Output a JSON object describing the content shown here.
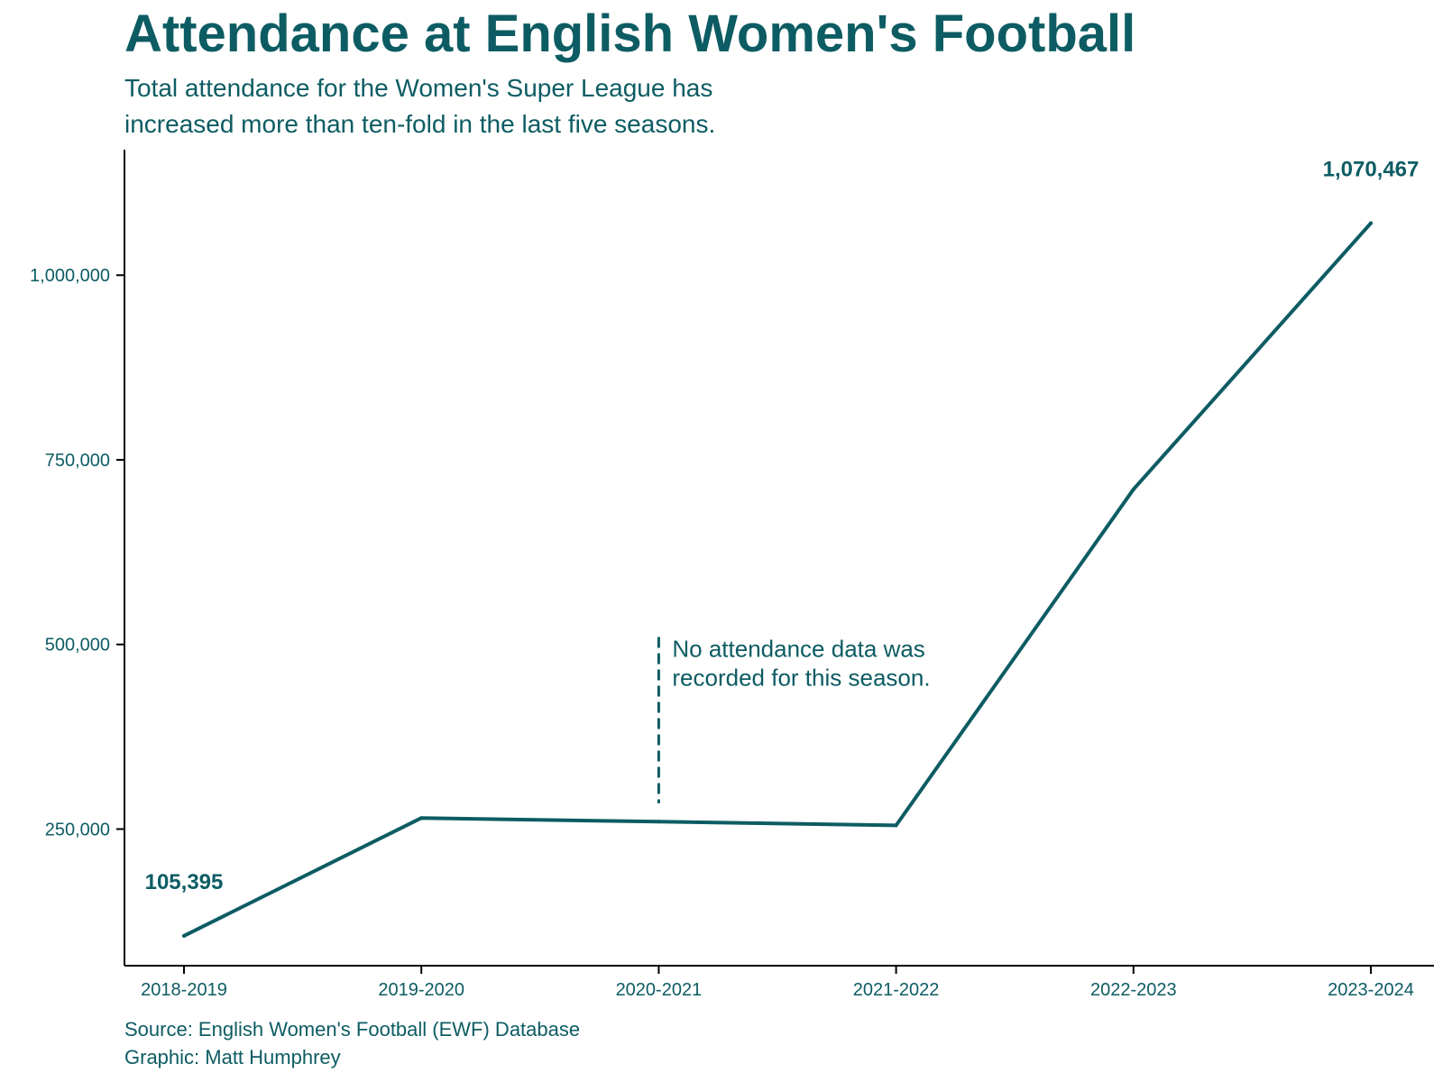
{
  "header": {
    "title": "Attendance at English Women's Football",
    "subtitle": "Total attendance for the Women's Super League has increased more than ten-fold in the last five seasons."
  },
  "footer": {
    "source": "Source: English Women's Football (EWF) Database",
    "credit": "Graphic: Matt Humphrey"
  },
  "chart_data": {
    "type": "line",
    "title": "Attendance at English Women's Football",
    "subtitle": "Total attendance for the Women's Super League has increased more than ten-fold in the last five seasons.",
    "xlabel": "",
    "ylabel": "",
    "categories": [
      "2018-2019",
      "2019-2020",
      "2020-2021",
      "2021-2022",
      "2022-2023",
      "2023-2024"
    ],
    "series": [
      {
        "values": [
          105395,
          265000,
          260000,
          255000,
          710000,
          1070467
        ]
      }
    ],
    "ylim": [
      65000,
      1170000
    ],
    "yticks": [
      250000,
      500000,
      750000,
      1000000
    ],
    "ytick_labels": [
      "250,000",
      "500,000",
      "750,000",
      "1,000,000"
    ],
    "grid": false,
    "legend": "none",
    "data_labels": [
      {
        "category": "2018-2019",
        "text": "105,395"
      },
      {
        "category": "2023-2024",
        "text": "1,070,467"
      }
    ],
    "annotation": {
      "category": "2020-2021",
      "y_range": [
        285000,
        510000
      ],
      "lines": [
        "No attendance data was",
        "recorded for this season."
      ]
    },
    "colors": {
      "line": "#0d5c63",
      "text": "#0d5c63",
      "axis": "#000000"
    }
  }
}
